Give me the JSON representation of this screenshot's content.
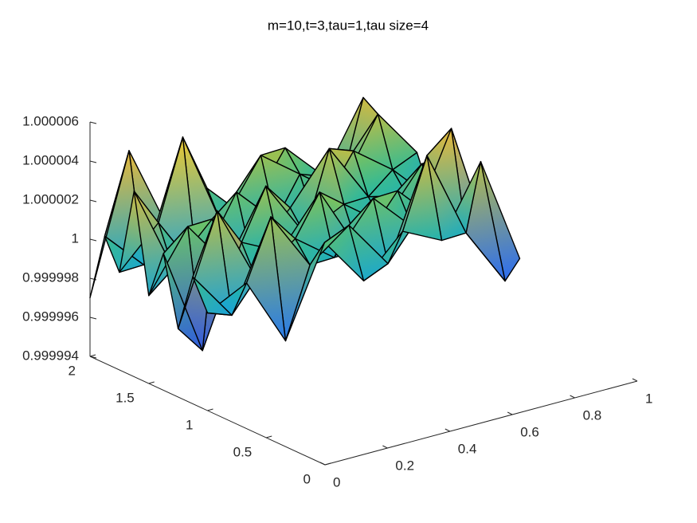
{
  "chart_data": {
    "type": "surface",
    "title": "m=10,t=3,tau=1,tau size=4",
    "x": [
      0,
      0.125,
      0.25,
      0.375,
      0.5,
      0.625,
      0.75,
      0.875,
      1
    ],
    "y": [
      1,
      1.125,
      1.25,
      1.375,
      1.5,
      1.625,
      1.75,
      1.875,
      2
    ],
    "z": [
      [
        0.999999,
        1.0,
        0.9999965,
        1.000001,
        0.9999985,
        1.0000005,
        0.9999995,
        1.000003,
        0.9999975
      ],
      [
        1.0000005,
        0.999998,
        1.0000025,
        0.9999995,
        1.000001,
        0.9999985,
        1.0000035,
        0.999999,
        0.999996
      ],
      [
        0.9999975,
        1.000003,
        0.999999,
        1.0000005,
        0.999999,
        1.0000015,
        0.9999995,
        1.000004,
        0.9999975
      ],
      [
        1.000001,
        0.9999955,
        1.0000005,
        0.9999995,
        1.000002,
        0.9999985,
        1.000001,
        0.999999,
        0.999998
      ],
      [
        0.9999985,
        1.0000015,
        0.999999,
        1.0000025,
        0.9999995,
        1.0000005,
        0.999999,
        1.0000015,
        0.9999985
      ],
      [
        1.0000035,
        0.999999,
        1.000001,
        0.9999985,
        1.0000005,
        1.000003,
        1.0,
        0.9999995,
        1.000001
      ],
      [
        0.999999,
        1.000001,
        0.999998,
        1.0000015,
        0.9999995,
        0.999999,
        1.000002,
        1.0000005,
        0.9999985
      ],
      [
        1.0000005,
        0.9999985,
        1.0000045,
        0.9999995,
        1.0000025,
        1.000001,
        0.9999995,
        1.000003,
        1.0000005
      ],
      [
        0.999997,
        1.000004,
        0.9999995,
        1.000001,
        0.999999,
        1.000002,
        1.0,
        1.0000035,
        1.0
      ]
    ],
    "xlim": [
      0,
      1
    ],
    "xticks": [
      0,
      0.2,
      0.4,
      0.6,
      0.8,
      1
    ],
    "ylim": [
      0,
      2
    ],
    "yticks": [
      0,
      0.5,
      1,
      1.5,
      2
    ],
    "zlim": [
      0.999994,
      1.000006
    ],
    "zticks": [
      0.999994,
      0.999996,
      0.999998,
      1,
      1.000002,
      1.000004,
      1.000006
    ],
    "colormap": [
      "#3e26a8",
      "#2c6df0",
      "#1aa2d8",
      "#26b8a0",
      "#7fc25a",
      "#e8b83a",
      "#f9fb15"
    ],
    "edge_color": "#000000"
  }
}
